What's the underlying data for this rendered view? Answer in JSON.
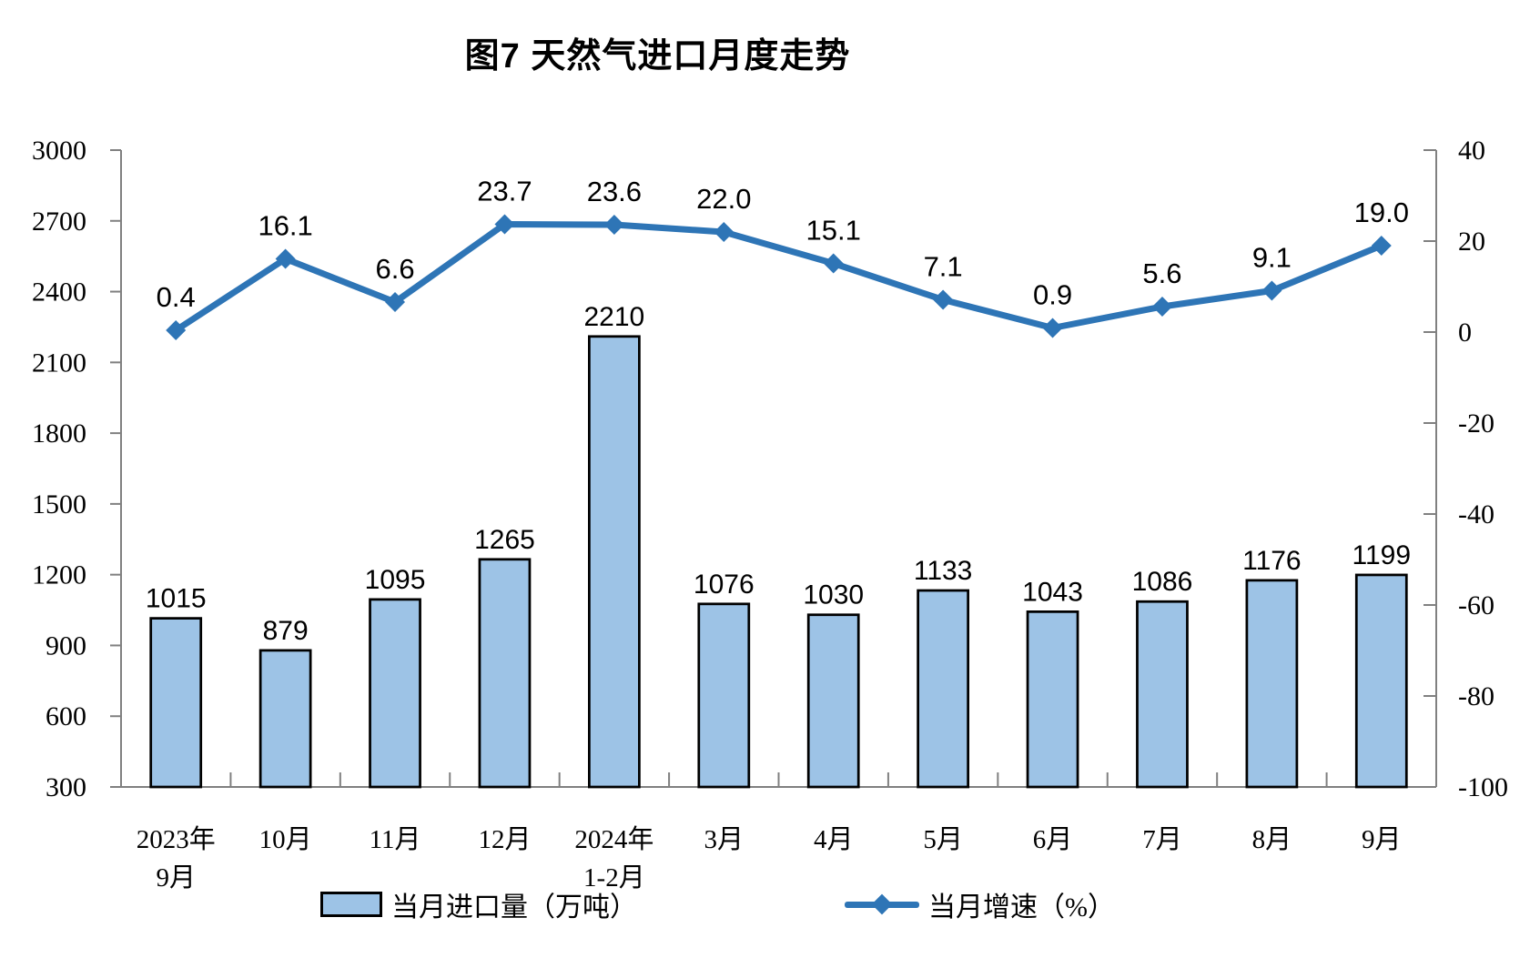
{
  "title": "图7 天然气进口月度走势",
  "chart_data": {
    "type": "bar",
    "combo": "bar+line dual axis",
    "categories": [
      [
        "2023年",
        "9月"
      ],
      [
        "10月"
      ],
      [
        "11月"
      ],
      [
        "12月"
      ],
      [
        "2024年",
        "1-2月"
      ],
      [
        "3月"
      ],
      [
        "4月"
      ],
      [
        "5月"
      ],
      [
        "6月"
      ],
      [
        "7月"
      ],
      [
        "8月"
      ],
      [
        "9月"
      ]
    ],
    "series": [
      {
        "name": "当月进口量（万吨）",
        "type": "bar",
        "axis": "left",
        "color": "#9DC3E6",
        "border_color": "#000000",
        "values": [
          1015,
          879,
          1095,
          1265,
          2210,
          1076,
          1030,
          1133,
          1043,
          1086,
          1176,
          1199
        ]
      },
      {
        "name": "当月增速（%）",
        "type": "line",
        "axis": "right",
        "color": "#2E75B6",
        "marker": "diamond",
        "values": [
          0.4,
          16.1,
          6.6,
          23.7,
          23.6,
          22.0,
          15.1,
          7.1,
          0.9,
          5.6,
          9.1,
          19.0
        ]
      }
    ],
    "left_axis": {
      "min": 300,
      "max": 3000,
      "step": 300,
      "tick_labels": [
        "3000",
        "2700",
        "2400",
        "2100",
        "1800",
        "1500",
        "1200",
        "900",
        "600",
        "300"
      ]
    },
    "right_axis": {
      "min": -100,
      "max": 40,
      "step": 20,
      "tick_labels": [
        "40",
        "20",
        "0",
        "-20",
        "-40",
        "-60",
        "-80",
        "-100"
      ]
    },
    "grid": false,
    "legend_position": "bottom"
  },
  "legend": {
    "bar_label": "当月进口量（万吨）",
    "line_label": "当月增速（%）"
  },
  "colors": {
    "bar_fill": "#9DC3E6",
    "bar_border": "#000000",
    "line": "#2E75B6",
    "axis": "#808080",
    "text": "#000000",
    "background": "#FFFFFF"
  }
}
